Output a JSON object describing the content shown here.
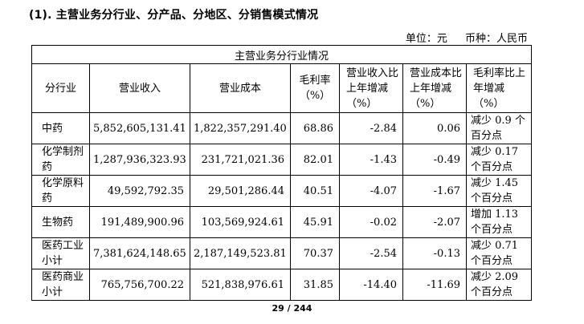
{
  "section_title": "(1). 主营业务分行业、分产品、分地区、分销售模式情况",
  "unit_label": "单位：元",
  "currency_label": "币种：人民币",
  "table": {
    "caption": "主营业务分行业情况",
    "headers": [
      "分行业",
      "营业收入",
      "营业成本",
      "毛利率（%）",
      "营业收入比上年增减（%）",
      "营业成本比上年增减（%）",
      "毛利率比上年增减（%）"
    ],
    "rows": [
      {
        "segment": "中药",
        "revenue": "5,852,605,131.41",
        "cost": "1,822,357,291.40",
        "margin": "68.86",
        "rev_change": "-2.84",
        "cost_change": "0.06",
        "margin_change": "减少 0.9 个百分点"
      },
      {
        "segment": "化学制剂药",
        "revenue": "1,287,936,323.93",
        "cost": "231,721,021.36",
        "margin": "82.01",
        "rev_change": "-1.43",
        "cost_change": "-0.49",
        "margin_change": "减少 0.17 个百分点"
      },
      {
        "segment": "化学原料药",
        "revenue": "49,592,792.35",
        "cost": "29,501,286.44",
        "margin": "40.51",
        "rev_change": "-4.07",
        "cost_change": "-1.67",
        "margin_change": "减少 1.45 个百分点"
      },
      {
        "segment": "生物药",
        "revenue": "191,489,900.96",
        "cost": "103,569,924.61",
        "margin": "45.91",
        "rev_change": "-0.02",
        "cost_change": "-2.07",
        "margin_change": "增加 1.13 个百分点"
      },
      {
        "segment": "医药工业小计",
        "revenue": "7,381,624,148.65",
        "cost": "2,187,149,523.81",
        "margin": "70.37",
        "rev_change": "-2.54",
        "cost_change": "-0.13",
        "margin_change": "减少 0.71 个百分点"
      },
      {
        "segment": "医药商业小计",
        "revenue": "765,756,700.22",
        "cost": "521,838,976.61",
        "margin": "31.85",
        "rev_change": "-14.40",
        "cost_change": "-11.69",
        "margin_change": "减少 2.09 个百分点"
      }
    ]
  },
  "page_number": "29 / 244"
}
